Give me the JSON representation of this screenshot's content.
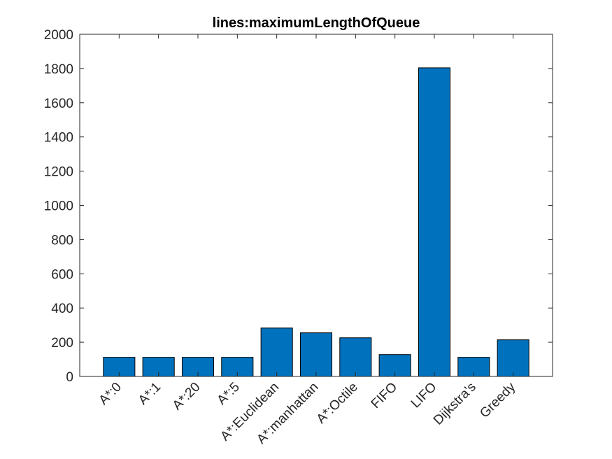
{
  "chart_data": {
    "type": "bar",
    "title": "lines:maximumLengthOfQueue",
    "xlabel": "",
    "ylabel": "",
    "categories": [
      "A*:0",
      "A*:1",
      "A*:20",
      "A*:5",
      "A*:Euclidean",
      "A*:manhattan",
      "A*:Octile",
      "FIFO",
      "LIFO",
      "Dijkstra's",
      "Greedy"
    ],
    "values": [
      112,
      112,
      112,
      112,
      283,
      255,
      226,
      128,
      1804,
      112,
      214
    ],
    "ylim": [
      0,
      2000
    ],
    "yticks": [
      0,
      200,
      400,
      600,
      800,
      1000,
      1200,
      1400,
      1600,
      1800,
      2000
    ],
    "bar_color": "#0072BD",
    "grid": false,
    "legend": "none"
  }
}
